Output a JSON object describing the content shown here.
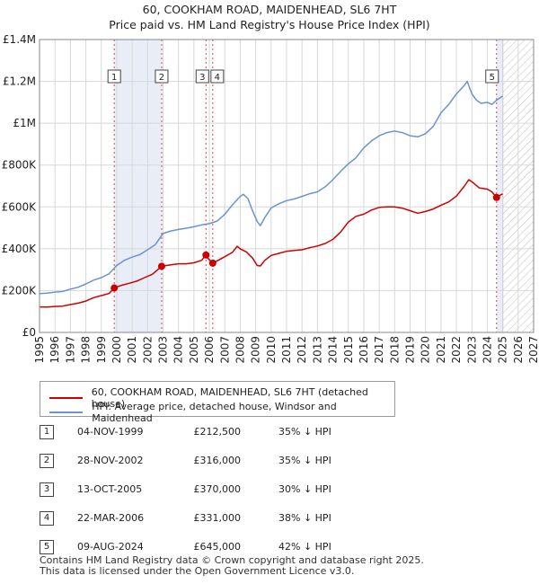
{
  "title_line1": "60, COOKHAM ROAD, MAIDENHEAD, SL6 7HT",
  "title_line2": "Price paid vs. HM Land Registry's House Price Index (HPI)",
  "colors": {
    "price": "#cc0000",
    "hpi": "#6a93d0",
    "band": "#e8edf8",
    "vline": "#dd4444"
  },
  "chart_data": {
    "type": "line",
    "x_range": [
      1995,
      2027
    ],
    "y_range": [
      0,
      1400000
    ],
    "y_ticks": [
      {
        "value": 0,
        "label": "£0"
      },
      {
        "value": 200000,
        "label": "£200K"
      },
      {
        "value": 400000,
        "label": "£400K"
      },
      {
        "value": 600000,
        "label": "£600K"
      },
      {
        "value": 800000,
        "label": "£800K"
      },
      {
        "value": 1000000,
        "label": "£1M"
      },
      {
        "value": 1200000,
        "label": "£1.2M"
      },
      {
        "value": 1400000,
        "label": "£1.4M"
      }
    ],
    "x_ticks": [
      "1995",
      "1996",
      "1997",
      "1998",
      "1999",
      "2000",
      "2001",
      "2002",
      "2003",
      "2004",
      "2005",
      "2006",
      "2007",
      "2008",
      "2009",
      "2010",
      "2011",
      "2012",
      "2013",
      "2014",
      "2015",
      "2016",
      "2017",
      "2018",
      "2019",
      "2020",
      "2021",
      "2022",
      "2023",
      "2024",
      "2025",
      "2026",
      "2027"
    ],
    "forecast_start": 2025.0,
    "shaded_ranges": [
      [
        1999.84,
        2002.91
      ],
      [
        2024.6,
        2025.0
      ]
    ],
    "series": [
      {
        "name": "60, COOKHAM ROAD, MAIDENHEAD, SL6 7HT (detached house)",
        "points": [
          [
            1995.0,
            122000
          ],
          [
            1995.5,
            121000
          ],
          [
            1996.0,
            124000
          ],
          [
            1996.5,
            126000
          ],
          [
            1997.0,
            133000
          ],
          [
            1997.5,
            140000
          ],
          [
            1998.0,
            150000
          ],
          [
            1998.5,
            166000
          ],
          [
            1999.0,
            176000
          ],
          [
            1999.5,
            186000
          ],
          [
            1999.84,
            212500
          ],
          [
            2000.3,
            225000
          ],
          [
            2000.8,
            235000
          ],
          [
            2001.3,
            245000
          ],
          [
            2001.8,
            262000
          ],
          [
            2002.3,
            278000
          ],
          [
            2002.91,
            316000
          ],
          [
            2003.5,
            323000
          ],
          [
            2004.0,
            328000
          ],
          [
            2004.5,
            328000
          ],
          [
            2005.0,
            333000
          ],
          [
            2005.5,
            345000
          ],
          [
            2005.78,
            370000
          ],
          [
            2005.9,
            355000
          ],
          [
            2006.22,
            331000
          ],
          [
            2006.6,
            346000
          ],
          [
            2007.0,
            362000
          ],
          [
            2007.5,
            383000
          ],
          [
            2007.8,
            412000
          ],
          [
            2008.0,
            400000
          ],
          [
            2008.4,
            385000
          ],
          [
            2008.8,
            355000
          ],
          [
            2009.1,
            320000
          ],
          [
            2009.3,
            318000
          ],
          [
            2009.6,
            345000
          ],
          [
            2010.0,
            368000
          ],
          [
            2010.5,
            378000
          ],
          [
            2011.0,
            388000
          ],
          [
            2011.5,
            392000
          ],
          [
            2012.0,
            395000
          ],
          [
            2012.5,
            405000
          ],
          [
            2013.0,
            413000
          ],
          [
            2013.5,
            425000
          ],
          [
            2014.0,
            445000
          ],
          [
            2014.5,
            480000
          ],
          [
            2015.0,
            528000
          ],
          [
            2015.5,
            555000
          ],
          [
            2016.0,
            565000
          ],
          [
            2016.5,
            585000
          ],
          [
            2017.0,
            598000
          ],
          [
            2017.5,
            600000
          ],
          [
            2018.0,
            600000
          ],
          [
            2018.5,
            594000
          ],
          [
            2019.0,
            582000
          ],
          [
            2019.5,
            570000
          ],
          [
            2020.0,
            578000
          ],
          [
            2020.5,
            590000
          ],
          [
            2021.0,
            608000
          ],
          [
            2021.5,
            624000
          ],
          [
            2022.0,
            652000
          ],
          [
            2022.5,
            698000
          ],
          [
            2022.8,
            730000
          ],
          [
            2023.0,
            720000
          ],
          [
            2023.5,
            690000
          ],
          [
            2024.0,
            685000
          ],
          [
            2024.3,
            672000
          ],
          [
            2024.6,
            645000
          ],
          [
            2024.8,
            655000
          ],
          [
            2025.0,
            662000
          ]
        ]
      },
      {
        "name": "HPI: Average price, detached house, Windsor and Maidenhead",
        "points": [
          [
            1995.0,
            186000
          ],
          [
            1995.5,
            188000
          ],
          [
            1996.0,
            193000
          ],
          [
            1996.5,
            196000
          ],
          [
            1997.0,
            207000
          ],
          [
            1997.5,
            216000
          ],
          [
            1998.0,
            232000
          ],
          [
            1998.5,
            250000
          ],
          [
            1999.0,
            262000
          ],
          [
            1999.5,
            280000
          ],
          [
            2000.0,
            320000
          ],
          [
            2000.5,
            345000
          ],
          [
            2001.0,
            360000
          ],
          [
            2001.5,
            372000
          ],
          [
            2002.0,
            395000
          ],
          [
            2002.5,
            420000
          ],
          [
            2003.0,
            473000
          ],
          [
            2003.5,
            485000
          ],
          [
            2004.0,
            492000
          ],
          [
            2004.5,
            498000
          ],
          [
            2005.0,
            505000
          ],
          [
            2005.5,
            514000
          ],
          [
            2006.0,
            520000
          ],
          [
            2006.5,
            532000
          ],
          [
            2007.0,
            565000
          ],
          [
            2007.5,
            610000
          ],
          [
            2008.0,
            650000
          ],
          [
            2008.2,
            660000
          ],
          [
            2008.5,
            640000
          ],
          [
            2008.8,
            580000
          ],
          [
            2009.1,
            530000
          ],
          [
            2009.3,
            510000
          ],
          [
            2009.6,
            550000
          ],
          [
            2010.0,
            595000
          ],
          [
            2010.5,
            615000
          ],
          [
            2011.0,
            630000
          ],
          [
            2011.5,
            638000
          ],
          [
            2012.0,
            650000
          ],
          [
            2012.5,
            663000
          ],
          [
            2013.0,
            672000
          ],
          [
            2013.5,
            696000
          ],
          [
            2014.0,
            730000
          ],
          [
            2014.5,
            770000
          ],
          [
            2015.0,
            806000
          ],
          [
            2015.5,
            835000
          ],
          [
            2016.0,
            882000
          ],
          [
            2016.5,
            915000
          ],
          [
            2017.0,
            940000
          ],
          [
            2017.5,
            955000
          ],
          [
            2018.0,
            963000
          ],
          [
            2018.5,
            955000
          ],
          [
            2019.0,
            940000
          ],
          [
            2019.5,
            935000
          ],
          [
            2020.0,
            950000
          ],
          [
            2020.5,
            985000
          ],
          [
            2021.0,
            1050000
          ],
          [
            2021.5,
            1090000
          ],
          [
            2022.0,
            1140000
          ],
          [
            2022.5,
            1180000
          ],
          [
            2022.7,
            1200000
          ],
          [
            2023.0,
            1140000
          ],
          [
            2023.3,
            1110000
          ],
          [
            2023.6,
            1095000
          ],
          [
            2024.0,
            1100000
          ],
          [
            2024.3,
            1090000
          ],
          [
            2024.6,
            1110000
          ],
          [
            2025.0,
            1130000
          ]
        ]
      }
    ],
    "sales": [
      {
        "label": "1",
        "x": 1999.84,
        "value": 212500
      },
      {
        "label": "2",
        "x": 2002.91,
        "value": 316000
      },
      {
        "label": "3",
        "x": 2005.78,
        "value": 370000
      },
      {
        "label": "4",
        "x": 2006.22,
        "value": 331000
      },
      {
        "label": "5",
        "x": 2024.6,
        "value": 645000
      }
    ]
  },
  "legend": {
    "price_label": "60, COOKHAM ROAD, MAIDENHEAD, SL6 7HT (detached house)",
    "hpi_label": "HPI: Average price, detached house, Windsor and Maidenhead"
  },
  "transactions": [
    {
      "num": "1",
      "date": "04-NOV-1999",
      "price": "£212,500",
      "hpi": "35% ↓ HPI"
    },
    {
      "num": "2",
      "date": "28-NOV-2002",
      "price": "£316,000",
      "hpi": "35% ↓ HPI"
    },
    {
      "num": "3",
      "date": "13-OCT-2005",
      "price": "£370,000",
      "hpi": "30% ↓ HPI"
    },
    {
      "num": "4",
      "date": "22-MAR-2006",
      "price": "£331,000",
      "hpi": "38% ↓ HPI"
    },
    {
      "num": "5",
      "date": "09-AUG-2024",
      "price": "£645,000",
      "hpi": "42% ↓ HPI"
    }
  ],
  "footer": {
    "line1": "Contains HM Land Registry data © Crown copyright and database right 2025.",
    "line2": "This data is licensed under the Open Government Licence v3.0."
  }
}
